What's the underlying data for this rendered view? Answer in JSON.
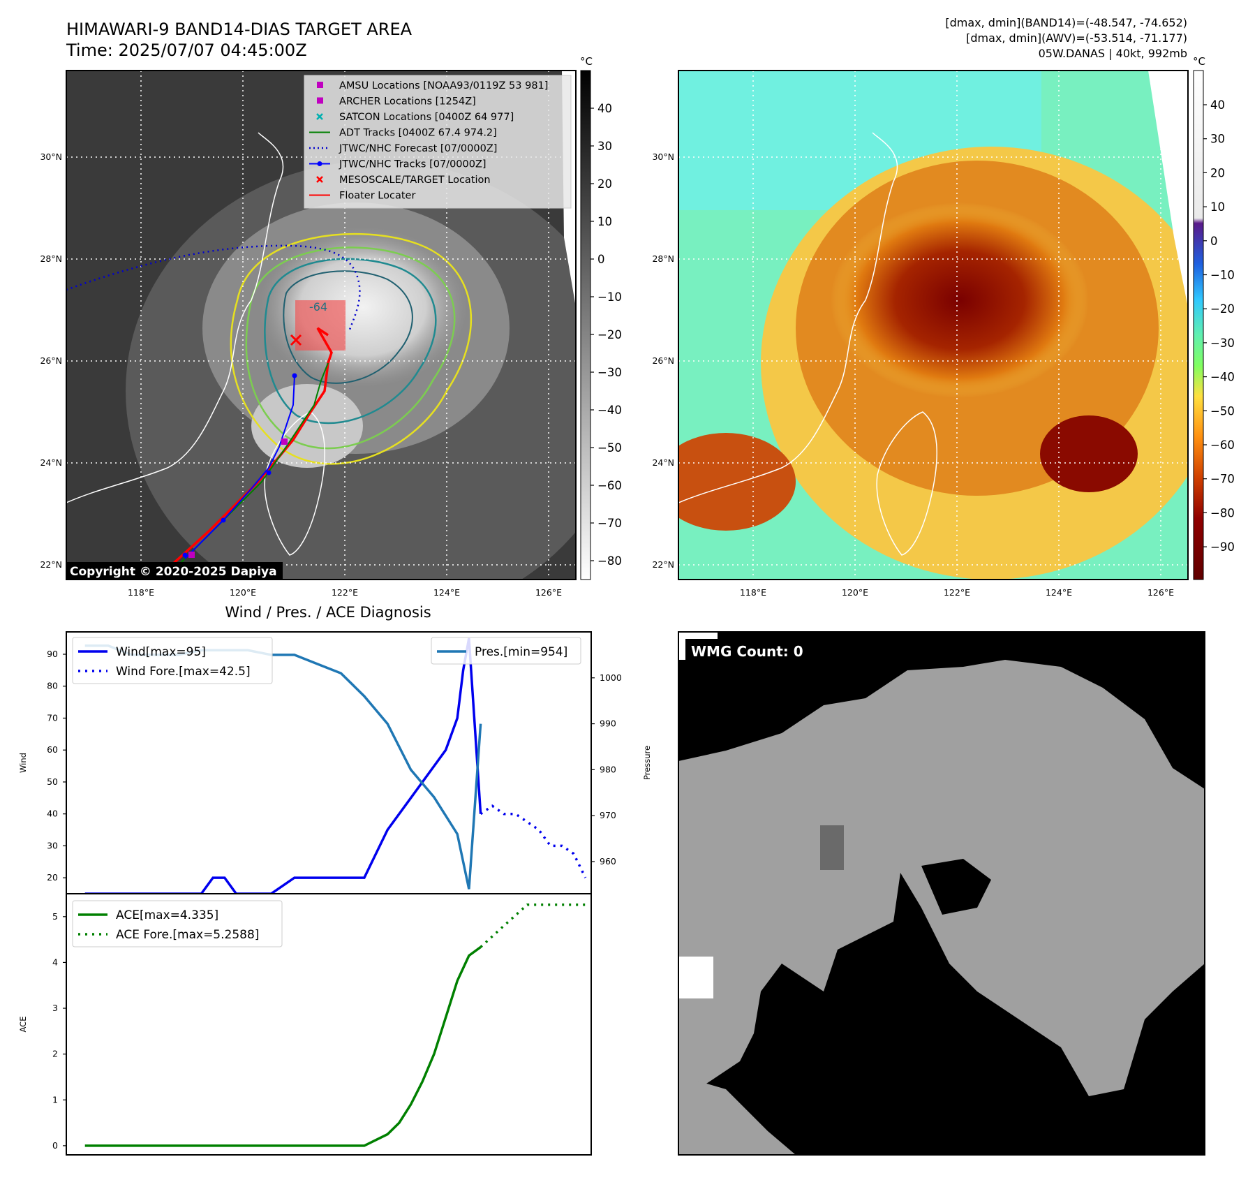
{
  "header": {
    "title": "HIMAWARI-9 BAND14-DIAS TARGET AREA",
    "time": "Time: 2025/07/07 04:45:00Z",
    "info_line1": "[dmax, dmin](BAND14)=(-48.547, -74.652)",
    "info_line2": "[dmax, dmin](AWV)=(-53.514, -71.177)",
    "info_line3": "05W.DANAS | 40kt, 992mb"
  },
  "copyright": "Copyright © 2020-2025 Dapiya",
  "map": {
    "lon_labels": [
      "118°E",
      "120°E",
      "122°E",
      "124°E",
      "126°E"
    ],
    "lat_labels": [
      "30°N",
      "28°N",
      "26°N",
      "24°N",
      "22°N"
    ],
    "contour_label": "-64",
    "legend": [
      {
        "label": "AMSU Locations [NOAA93/0119Z 53 981]",
        "color": "#c000c0",
        "kind": "square"
      },
      {
        "label": "ARCHER Locations [1254Z]",
        "color": "#c000c0",
        "kind": "square"
      },
      {
        "label": "SATCON Locations [0400Z 64 977]",
        "color": "#00b0b0",
        "kind": "x"
      },
      {
        "label": "ADT Tracks [0400Z 67.4 974.2]",
        "color": "#008000",
        "kind": "line"
      },
      {
        "label": "JTWC/NHC Forecast [07/0000Z]",
        "color": "#0000cc",
        "kind": "dotted"
      },
      {
        "label": "JTWC/NHC Tracks [07/0000Z]",
        "color": "#0000ff",
        "kind": "line-dot"
      },
      {
        "label": "MESOSCALE/TARGET Location",
        "color": "#ff0000",
        "kind": "x"
      },
      {
        "label": "Floater Locater",
        "color": "#ff0000",
        "kind": "line"
      }
    ]
  },
  "colorbar_ir": {
    "unit": "°C",
    "ticks": [
      "40",
      "30",
      "20",
      "10",
      "0",
      "−10",
      "−20",
      "−30",
      "−40",
      "−50",
      "−60",
      "−70",
      "−80"
    ]
  },
  "colorbar_awv": {
    "unit": "°C",
    "ticks": [
      "40",
      "30",
      "20",
      "10",
      "0",
      "−10",
      "−20",
      "−30",
      "−40",
      "−50",
      "−60",
      "−70",
      "−80",
      "−90"
    ]
  },
  "diagnosis": {
    "title": "Wind / Pres. / ACE Diagnosis"
  },
  "wmg": {
    "label": "WMG Count: 0"
  },
  "chart_data": [
    {
      "type": "line",
      "ylabel": "Wind",
      "y2label": "Pressure",
      "ylim": [
        15,
        97
      ],
      "y2lim": [
        953,
        1010
      ],
      "yticks": [
        20,
        30,
        40,
        50,
        60,
        70,
        80,
        90
      ],
      "y2ticks": [
        960,
        970,
        980,
        990,
        1000
      ],
      "series": [
        {
          "name": "Wind[max=95]",
          "color": "#0000ee",
          "style": "solid",
          "axis": "left",
          "x": [
            0,
            2,
            4,
            6,
            8,
            10,
            11,
            12,
            13,
            14,
            15,
            16,
            18,
            20,
            22,
            24,
            26,
            28,
            30,
            31,
            32,
            32.5,
            33,
            34
          ],
          "values": [
            15,
            15,
            15,
            15,
            15,
            15,
            20,
            20,
            15,
            15,
            15,
            15,
            20,
            20,
            20,
            20,
            35,
            45,
            55,
            60,
            70,
            85,
            95,
            40
          ]
        },
        {
          "name": "Wind Fore.[max=42.5]",
          "color": "#0000ee",
          "style": "dotted",
          "axis": "left",
          "x": [
            34,
            35,
            36,
            37,
            38,
            39,
            40,
            41,
            42,
            43
          ],
          "values": [
            40,
            42.5,
            40,
            40,
            37.5,
            35,
            30,
            30,
            27.5,
            20
          ]
        },
        {
          "name": "Pres.[min=954]",
          "color": "#1f77b4",
          "style": "solid",
          "axis": "right",
          "x": [
            0,
            2,
            4,
            6,
            8,
            10,
            12,
            14,
            16,
            18,
            20,
            22,
            24,
            26,
            28,
            30,
            32,
            33,
            34
          ],
          "values": [
            1007,
            1007,
            1005,
            1005,
            1005,
            1006,
            1006,
            1006,
            1005,
            1005,
            1003,
            1001,
            996,
            990,
            980,
            974,
            966,
            954,
            990
          ]
        }
      ]
    },
    {
      "type": "line",
      "ylabel": "ACE",
      "ylim": [
        -0.2,
        5.5
      ],
      "yticks": [
        0,
        1,
        2,
        3,
        4,
        5
      ],
      "series": [
        {
          "name": "ACE[max=4.335]",
          "color": "#008000",
          "style": "solid",
          "x": [
            0,
            4,
            8,
            12,
            16,
            20,
            24,
            26,
            27,
            28,
            29,
            30,
            31,
            32,
            33,
            34
          ],
          "values": [
            0,
            0,
            0,
            0,
            0,
            0,
            0,
            0.25,
            0.5,
            0.9,
            1.4,
            2.0,
            2.8,
            3.6,
            4.15,
            4.335
          ]
        },
        {
          "name": "ACE Fore.[max=5.2588]",
          "color": "#008000",
          "style": "dotted",
          "x": [
            34,
            36,
            38,
            39,
            40,
            41,
            42,
            43
          ],
          "values": [
            4.335,
            4.8,
            5.2588,
            5.2588,
            5.2588,
            5.2588,
            5.2588,
            5.2588
          ]
        }
      ]
    }
  ]
}
